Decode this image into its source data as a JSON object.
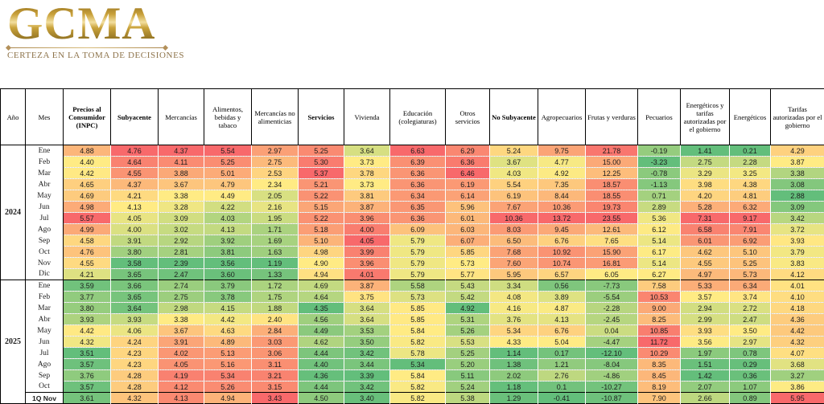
{
  "logo": {
    "text": "GCMA",
    "tagline": "CERTEZA EN LA TOMA DE DECISIONES"
  },
  "chart_data": {
    "type": "table",
    "heatmap_scale": {
      "min_color": "#63BE7B",
      "mid_color": "#FFEB84",
      "max_color": "#F8696B",
      "mode": "per-column 3-color scale, midpoint at column median"
    },
    "corner_headers": {
      "year": "Año",
      "month": "Mes"
    },
    "columns": [
      {
        "label": "Precios al Consumidor (INPC)",
        "bold": true
      },
      {
        "label": "Subyacente",
        "bold": true
      },
      {
        "label": "Mercancías",
        "bold": false
      },
      {
        "label": "Alimentos, bebidas y tabaco",
        "bold": false
      },
      {
        "label": "Mercancías no alimenticias",
        "bold": false
      },
      {
        "label": "Servicios",
        "bold": true
      },
      {
        "label": "Vivienda",
        "bold": false
      },
      {
        "label": "Educación (colegiaturas)",
        "bold": false
      },
      {
        "label": "Otros servicios",
        "bold": false
      },
      {
        "label": "No Subyacente",
        "bold": true
      },
      {
        "label": "Agropecuarios",
        "bold": false
      },
      {
        "label": "Frutas y verduras",
        "bold": false
      },
      {
        "label": "Pecuarios",
        "bold": false
      },
      {
        "label": "Energéticos y tarifas autorizadas por el gobierno",
        "bold": false
      },
      {
        "label": "Energéticos",
        "bold": false
      },
      {
        "label": "Tarifas autorizadas por el gobierno",
        "bold": false
      }
    ],
    "groups": [
      {
        "year": "2024",
        "rows": [
          {
            "month": "Ene",
            "values": [
              "4.88",
              "4.76",
              "4.37",
              "5.54",
              "2.97",
              "5.25",
              "3.64",
              "6.63",
              "6.29",
              "5.24",
              "9.75",
              "21.78",
              "-0.19",
              "1.41",
              "0.21",
              "4.29"
            ]
          },
          {
            "month": "Feb",
            "values": [
              "4.40",
              "4.64",
              "4.11",
              "5.25",
              "2.75",
              "5.30",
              "3.73",
              "6.39",
              "6.36",
              "3.67",
              "4.77",
              "15.00",
              "-3.23",
              "2.75",
              "2.28",
              "3.87"
            ]
          },
          {
            "month": "Mar",
            "values": [
              "4.42",
              "4.55",
              "3.88",
              "5.01",
              "2.53",
              "5.37",
              "3.78",
              "6.36",
              "6.46",
              "4.03",
              "4.92",
              "12.25",
              "-0.78",
              "3.29",
              "3.25",
              "3.38"
            ]
          },
          {
            "month": "Abr",
            "values": [
              "4.65",
              "4.37",
              "3.67",
              "4.79",
              "2.34",
              "5.21",
              "3.73",
              "6.36",
              "6.19",
              "5.54",
              "7.35",
              "18.57",
              "-1.13",
              "3.98",
              "4.38",
              "3.08"
            ]
          },
          {
            "month": "May",
            "values": [
              "4.69",
              "4.21",
              "3.38",
              "4.49",
              "2.05",
              "5.22",
              "3.81",
              "6.34",
              "6.14",
              "6.19",
              "8.44",
              "18.55",
              "0.71",
              "4.20",
              "4.81",
              "2.88"
            ]
          },
          {
            "month": "Jun",
            "values": [
              "4.98",
              "4.13",
              "3.28",
              "4.22",
              "2.16",
              "5.15",
              "3.87",
              "6.35",
              "5.96",
              "7.67",
              "10.36",
              "19.73",
              "2.89",
              "5.28",
              "6.32",
              "3.09"
            ]
          },
          {
            "month": "Jul",
            "values": [
              "5.57",
              "4.05",
              "3.09",
              "4.03",
              "1.95",
              "5.22",
              "3.96",
              "6.36",
              "6.01",
              "10.36",
              "13.72",
              "23.55",
              "5.36",
              "7.31",
              "9.17",
              "3.42"
            ]
          },
          {
            "month": "Ago",
            "values": [
              "4.99",
              "4.00",
              "3.02",
              "4.13",
              "1.71",
              "5.18",
              "4.00",
              "6.09",
              "6.03",
              "8.03",
              "9.45",
              "12.61",
              "6.12",
              "6.58",
              "7.91",
              "3.72"
            ]
          },
          {
            "month": "Sep",
            "values": [
              "4.58",
              "3.91",
              "2.92",
              "3.92",
              "1.69",
              "5.10",
              "4.05",
              "5.79",
              "6.07",
              "6.50",
              "6.76",
              "7.65",
              "5.14",
              "6.01",
              "6.92",
              "3.93"
            ]
          },
          {
            "month": "Oct",
            "values": [
              "4.76",
              "3.80",
              "2.81",
              "3.81",
              "1.63",
              "4.98",
              "3.99",
              "5.79",
              "5.85",
              "7.68",
              "10.92",
              "15.90",
              "6.17",
              "4.62",
              "5.10",
              "3.79"
            ]
          },
          {
            "month": "Nov",
            "values": [
              "4.55",
              "3.58",
              "2.39",
              "3.56",
              "1.19",
              "4.90",
              "3.96",
              "5.79",
              "5.73",
              "7.60",
              "10.74",
              "16.81",
              "5.14",
              "4.55",
              "5.25",
              "3.83"
            ]
          },
          {
            "month": "Dic",
            "values": [
              "4.21",
              "3.65",
              "2.47",
              "3.60",
              "1.33",
              "4.94",
              "4.01",
              "5.79",
              "5.77",
              "5.95",
              "6.57",
              "6.05",
              "6.27",
              "4.97",
              "5.73",
              "4.12"
            ]
          }
        ]
      },
      {
        "year": "2025",
        "rows": [
          {
            "month": "Ene",
            "divider_top": true,
            "values": [
              "3.59",
              "3.66",
              "2.74",
              "3.79",
              "1.72",
              "4.69",
              "3.87",
              "5.58",
              "5.43",
              "3.34",
              "0.56",
              "-7.73",
              "7.58",
              "5.33",
              "6.34",
              "4.01"
            ]
          },
          {
            "month": "Feb",
            "values": [
              "3.77",
              "3.65",
              "2.75",
              "3.78",
              "1.75",
              "4.64",
              "3.75",
              "5.73",
              "5.42",
              "4.08",
              "3.89",
              "-5.54",
              "10.53",
              "3.57",
              "3.74",
              "4.10"
            ]
          },
          {
            "month": "Mar",
            "values": [
              "3.80",
              "3.64",
              "2.98",
              "4.15",
              "1.88",
              "4.35",
              "3.64",
              "5.85",
              "4.92",
              "4.16",
              "4.87",
              "-2.28",
              "9.00",
              "2.94",
              "2.72",
              "4.18"
            ]
          },
          {
            "month": "Abr",
            "values": [
              "3.93",
              "3.93",
              "3.38",
              "4.42",
              "2.40",
              "4.56",
              "3.64",
              "5.85",
              "5.31",
              "3.76",
              "4.13",
              "-2.45",
              "8.25",
              "2.99",
              "2.47",
              "4.36"
            ]
          },
          {
            "month": "May",
            "values": [
              "4.42",
              "4.06",
              "3.67",
              "4.63",
              "2.84",
              "4.49",
              "3.53",
              "5.84",
              "5.26",
              "5.34",
              "6.76",
              "0.04",
              "10.85",
              "3.93",
              "3.50",
              "4.42"
            ]
          },
          {
            "month": "Jun",
            "values": [
              "4.32",
              "4.24",
              "3.91",
              "4.89",
              "3.03",
              "4.62",
              "3.50",
              "5.82",
              "5.53",
              "4.33",
              "5.04",
              "-4.47",
              "11.72",
              "3.56",
              "2.97",
              "4.32"
            ]
          },
          {
            "month": "Jul",
            "values": [
              "3.51",
              "4.23",
              "4.02",
              "5.13",
              "3.06",
              "4.44",
              "3.42",
              "5.78",
              "5.25",
              "1.14",
              "0.17",
              "-12.10",
              "10.29",
              "1.97",
              "0.78",
              "4.07"
            ]
          },
          {
            "month": "Ago",
            "values": [
              "3.57",
              "4.23",
              "4.05",
              "5.16",
              "3.11",
              "4.40",
              "3.44",
              "5.34",
              "5.20",
              "1.38",
              "1.21",
              "-8.04",
              "8.35",
              "1.51",
              "0.29",
              "3.68"
            ]
          },
          {
            "month": "Sep",
            "values": [
              "3.76",
              "4.28",
              "4.19",
              "5.34",
              "3.21",
              "4.36",
              "3.39",
              "5.84",
              "5.11",
              "2.02",
              "2.76",
              "-4.86",
              "8.45",
              "1.42",
              "0.36",
              "3.27"
            ]
          },
          {
            "month": "Oct",
            "values": [
              "3.57",
              "4.28",
              "4.12",
              "5.26",
              "3.15",
              "4.44",
              "3.42",
              "5.82",
              "5.24",
              "1.18",
              "0.1",
              "-10.27",
              "8.19",
              "2.07",
              "1.07",
              "3.86"
            ]
          },
          {
            "month": "1Q Nov",
            "bold": true,
            "divider_top": true,
            "values": [
              "3.61",
              "4.32",
              "4.13",
              "4.94",
              "3.43",
              "4.50",
              "3.40",
              "5.82",
              "5.38",
              "1.29",
              "-0.41",
              "-10.87",
              "7.90",
              "2.66",
              "0.89",
              "5.95"
            ]
          }
        ]
      }
    ]
  }
}
